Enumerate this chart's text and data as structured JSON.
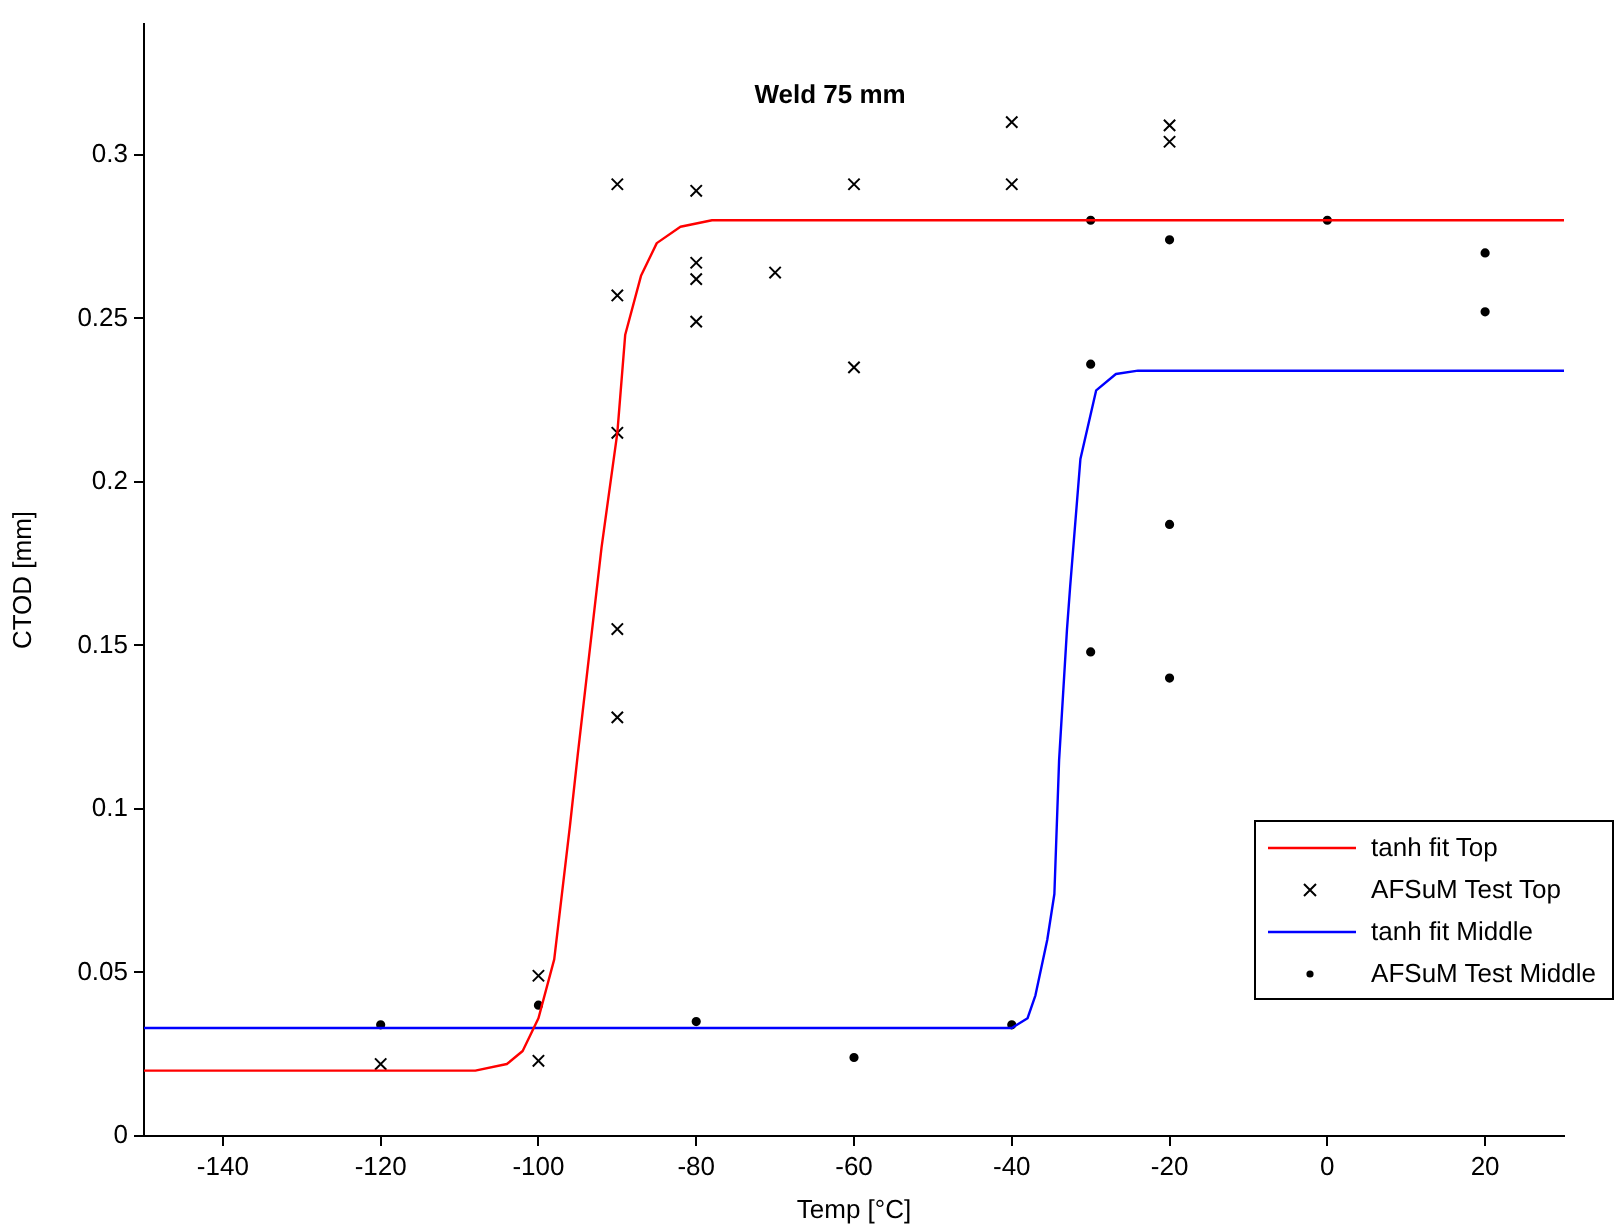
{
  "chart_data": {
    "type": "scatter",
    "title": "Weld 75 mm",
    "xlabel": "Temp [°C]",
    "ylabel": "CTOD [mm]",
    "xlim": [
      -150,
      30
    ],
    "xticks": [
      -140,
      -120,
      -100,
      -80,
      -60,
      -40,
      -20,
      0,
      20
    ],
    "ylim": [
      0,
      0.34
    ],
    "yticks": [
      0,
      0.05,
      0.1,
      0.15,
      0.2,
      0.25,
      0.3
    ],
    "grid": false,
    "legend": "bottom right",
    "series": [
      {
        "name": "tanh fit Top",
        "type": "line",
        "color": "#ff0000",
        "marker": "none",
        "line_style": "solid",
        "x": [
          -150,
          -108,
          -104,
          -102,
          -100,
          -98,
          -96,
          -95,
          -92,
          -90,
          -89,
          -87,
          -85,
          -82,
          -78,
          30
        ],
        "values": [
          0.02,
          0.02,
          0.022,
          0.026,
          0.036,
          0.054,
          0.095,
          0.117,
          0.18,
          0.215,
          0.245,
          0.263,
          0.273,
          0.278,
          0.28,
          0.28
        ]
      },
      {
        "name": "AFSuM Test Top",
        "type": "scatter",
        "color": "#000000",
        "marker": "cross",
        "x": [
          -120,
          -100,
          -100,
          -90,
          -90,
          -90,
          -90,
          -90,
          -80,
          -80,
          -80,
          -80,
          -70,
          -60,
          -60,
          -40,
          -40,
          -20,
          -20
        ],
        "values": [
          0.022,
          0.049,
          0.023,
          0.291,
          0.257,
          0.215,
          0.155,
          0.128,
          0.289,
          0.267,
          0.262,
          0.249,
          0.264,
          0.291,
          0.235,
          0.31,
          0.291,
          0.309,
          0.304
        ]
      },
      {
        "name": "tanh fit Middle",
        "type": "line",
        "color": "#0000ff",
        "marker": "none",
        "line_style": "solid",
        "x": [
          -150,
          -40,
          -38,
          -37,
          -35.5,
          -34.6,
          -34,
          -33,
          -32.6,
          -31.3,
          -29.3,
          -26.8,
          -24,
          30
        ],
        "values": [
          0.033,
          0.033,
          0.036,
          0.043,
          0.06,
          0.074,
          0.115,
          0.155,
          0.168,
          0.207,
          0.228,
          0.233,
          0.234,
          0.234
        ]
      },
      {
        "name": "AFSuM Test Middle",
        "type": "scatter",
        "color": "#000000",
        "marker": "circle",
        "x": [
          -120,
          -100,
          -80,
          -60,
          -40,
          -30,
          -30,
          -30,
          -20,
          -20,
          -20,
          0,
          20,
          20
        ],
        "values": [
          0.034,
          0.04,
          0.035,
          0.024,
          0.034,
          0.28,
          0.236,
          0.148,
          0.274,
          0.187,
          0.14,
          0.28,
          0.27,
          0.252
        ]
      }
    ]
  }
}
